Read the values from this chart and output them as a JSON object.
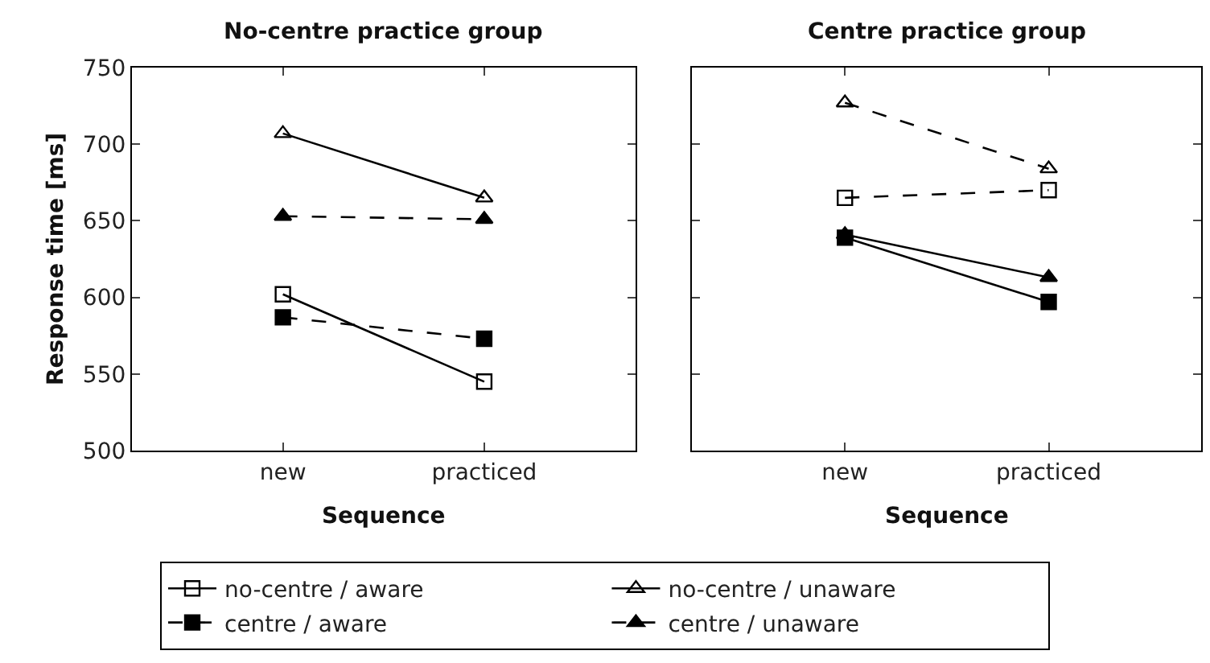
{
  "chart_data": [
    {
      "type": "line",
      "title": "No-centre practice group",
      "xlabel": "Sequence",
      "ylabel": "Response time [ms]",
      "categories": [
        "new",
        "practiced"
      ],
      "ylim": [
        500,
        750
      ],
      "yticks": [
        500,
        550,
        600,
        650,
        700,
        750
      ],
      "grid": false,
      "legend": "bottom",
      "series": [
        {
          "name": "no-centre / aware",
          "color": "#000000",
          "marker": "square-open",
          "line_style": "solid",
          "values": [
            602,
            545
          ]
        },
        {
          "name": "no-centre / unaware",
          "color": "#000000",
          "marker": "triangle-open",
          "line_style": "solid",
          "values": [
            707,
            665
          ]
        },
        {
          "name": "centre / aware",
          "color": "#000000",
          "marker": "square",
          "line_style": "dashed",
          "values": [
            587,
            573
          ]
        },
        {
          "name": "centre / unaware",
          "color": "#000000",
          "marker": "triangle",
          "line_style": "dashed",
          "values": [
            653,
            651
          ]
        }
      ]
    },
    {
      "type": "line",
      "title": "Centre practice group",
      "xlabel": "Sequence",
      "categories": [
        "new",
        "practiced"
      ],
      "ylim": [
        500,
        750
      ],
      "yticks": [
        500,
        550,
        600,
        650,
        700,
        750
      ],
      "grid": false,
      "legend": "bottom",
      "tick_labels": "x",
      "series": [
        {
          "name": "no-centre / aware",
          "color": "#000000",
          "marker": "square-open",
          "line_style": "dashed",
          "values": [
            665,
            670
          ]
        },
        {
          "name": "no-centre / unaware",
          "color": "#000000",
          "marker": "triangle-open",
          "line_style": "dashed",
          "values": [
            727,
            684
          ]
        },
        {
          "name": "centre / aware",
          "color": "#000000",
          "marker": "square",
          "line_style": "solid",
          "values": [
            639,
            597
          ]
        },
        {
          "name": "centre / unaware",
          "color": "#000000",
          "marker": "triangle",
          "line_style": "solid",
          "values": [
            641,
            613
          ]
        }
      ]
    }
  ]
}
